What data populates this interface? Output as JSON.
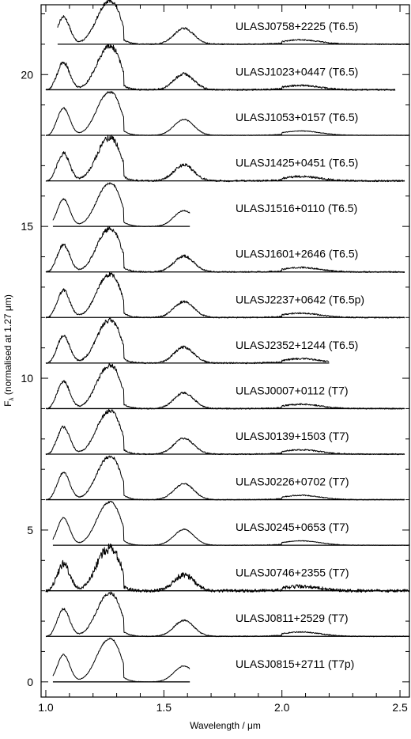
{
  "chart_data": {
    "type": "line",
    "xlabel": "Wavelength / μm",
    "ylabel": "F_λ (normalised at 1.27 μm)",
    "ylabel_main": "F",
    "ylabel_sub": "λ",
    "ylabel_rest": " (normalised at 1.27 μm)",
    "xlim": [
      0.98,
      2.54
    ],
    "ylim": [
      -0.5,
      22.3
    ],
    "x_ticks": [
      1.0,
      1.5,
      2.0,
      2.5
    ],
    "x_tick_labels": [
      "1.0",
      "1.5",
      "2.0",
      "2.5"
    ],
    "y_ticks": [
      0,
      5,
      10,
      15,
      20
    ],
    "y_tick_labels": [
      "0",
      "5",
      "10",
      "15",
      "20"
    ],
    "grid": false,
    "series": [
      {
        "name": "ULASJ0758+2225 (T6.5)",
        "label": "ULASJ0758+2225",
        "type": "T6.5",
        "offset": 21.0,
        "x_range": [
          1.05,
          2.54
        ],
        "noise": 0.1
      },
      {
        "name": "ULASJ1023+0447 (T6.5)",
        "label": "ULASJ1023+0447",
        "type": "T6.5",
        "offset": 19.5,
        "x_range": [
          1.0,
          2.48
        ],
        "noise": 0.14
      },
      {
        "name": "ULASJ1053+0157 (T6.5)",
        "label": "ULASJ1053+0157",
        "type": "T6.5",
        "offset": 18.0,
        "x_range": [
          1.0,
          2.54
        ],
        "noise": 0.05
      },
      {
        "name": "ULASJ1425+0451 (T6.5)",
        "label": "ULASJ1425+0451",
        "type": "T6.5",
        "offset": 16.5,
        "x_range": [
          1.0,
          2.52
        ],
        "noise": 0.16
      },
      {
        "name": "ULASJ1516+0110 (T6.5)",
        "label": "ULASJ1516+0110",
        "type": "T6.5",
        "offset": 15.0,
        "x_range": [
          1.03,
          1.61
        ],
        "noise": 0.05
      },
      {
        "name": "ULASJ1601+2646 (T6.5)",
        "label": "ULASJ1601+2646",
        "type": "T6.5",
        "offset": 13.5,
        "x_range": [
          1.0,
          2.52
        ],
        "noise": 0.12
      },
      {
        "name": "ULASJ2237+0642 (T6.5p)",
        "label": "ULASJ2237+0642",
        "type": "T6.5p",
        "offset": 12.0,
        "x_range": [
          1.0,
          2.52
        ],
        "noise": 0.11
      },
      {
        "name": "ULASJ2352+1244 (T6.5)",
        "label": "ULASJ2352+1244",
        "type": "T6.5",
        "offset": 10.5,
        "x_range": [
          1.0,
          2.2
        ],
        "noise": 0.13
      },
      {
        "name": "ULASJ0007+0112 (T7)",
        "label": "ULASJ0007+0112",
        "type": "T7",
        "offset": 9.0,
        "x_range": [
          1.0,
          2.52
        ],
        "noise": 0.11
      },
      {
        "name": "ULASJ0139+1503 (T7)",
        "label": "ULASJ0139+1503",
        "type": "T7",
        "offset": 7.5,
        "x_range": [
          1.0,
          2.52
        ],
        "noise": 0.1
      },
      {
        "name": "ULASJ0226+0702 (T7)",
        "label": "ULASJ0226+0702",
        "type": "T7",
        "offset": 6.0,
        "x_range": [
          1.0,
          2.52
        ],
        "noise": 0.08
      },
      {
        "name": "ULASJ0245+0653 (T7)",
        "label": "ULASJ0245+0653",
        "type": "T7",
        "offset": 4.5,
        "x_range": [
          1.03,
          2.54
        ],
        "noise": 0.05
      },
      {
        "name": "ULASJ0746+2355 (T7)",
        "label": "ULASJ0746+2355",
        "type": "T7",
        "offset": 3.0,
        "x_range": [
          1.0,
          2.54
        ],
        "noise": 0.28
      },
      {
        "name": "ULASJ0811+2529 (T7)",
        "label": "ULASJ0811+2529",
        "type": "T7",
        "offset": 1.5,
        "x_range": [
          1.0,
          2.54
        ],
        "noise": 0.08
      },
      {
        "name": "ULASJ0815+2711 (T7p)",
        "label": "ULASJ0815+2711",
        "type": "T7p",
        "offset": 0.0,
        "x_range": [
          1.03,
          1.61
        ],
        "noise": 0.04
      }
    ]
  }
}
